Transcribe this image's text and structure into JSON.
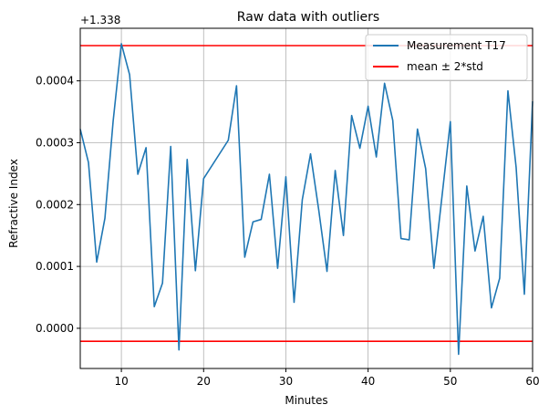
{
  "chart_data": {
    "type": "line",
    "title": "Raw data with outliers",
    "xlabel": "Minutes",
    "ylabel": "Refractive Index",
    "offset_label": "+1.338",
    "xlim": [
      5,
      60
    ],
    "ylim": [
      -6.5e-05,
      0.000485
    ],
    "xticks": [
      10,
      20,
      30,
      40,
      50,
      60
    ],
    "yticks": [
      0.0,
      0.0001,
      0.0002,
      0.0003,
      0.0004
    ],
    "ytick_labels": [
      "0.0000",
      "0.0001",
      "0.0002",
      "0.0003",
      "0.0004"
    ],
    "grid": true,
    "legend_position": "top-right",
    "series": [
      {
        "name": "Measurement T17",
        "color": "#1f77b4",
        "x": [
          5,
          6,
          7,
          8,
          9,
          10,
          11,
          12,
          13,
          14,
          15,
          16,
          17,
          18,
          19,
          20,
          23,
          24,
          25,
          26,
          27,
          28,
          29,
          30,
          31,
          32,
          33,
          34,
          35,
          36,
          37,
          38,
          39,
          40,
          41,
          42,
          43,
          44,
          45,
          46,
          47,
          48,
          49,
          50,
          51,
          52,
          53,
          54,
          55,
          56,
          57,
          58,
          59,
          60
        ],
        "y": [
          0.000322,
          0.000268,
          0.000107,
          0.000178,
          0.000335,
          0.00046,
          0.00041,
          0.000249,
          0.000292,
          3.5e-05,
          7.3e-05,
          0.000294,
          -3.5e-05,
          0.000273,
          9.3e-05,
          0.000242,
          0.000304,
          0.000392,
          0.000115,
          0.000172,
          0.000176,
          0.000249,
          9.7e-05,
          0.000245,
          4.2e-05,
          0.000208,
          0.000282,
          0.000191,
          9.2e-05,
          0.000255,
          0.00015,
          0.000344,
          0.000291,
          0.000359,
          0.000277,
          0.000396,
          0.000336,
          0.000145,
          0.000143,
          0.000322,
          0.000258,
          9.7e-05,
          0.000215,
          0.000334,
          -4.2e-05,
          0.00023,
          0.000125,
          0.000181,
          3.3e-05,
          8.1e-05,
          0.000384,
          0.00026,
          5.5e-05,
          0.000367
        ]
      }
    ],
    "reference_lines": [
      {
        "name": "mean ± 2*std",
        "color": "#ff0000",
        "y_values": [
          0.000457,
          -2.1e-05
        ]
      }
    ]
  }
}
